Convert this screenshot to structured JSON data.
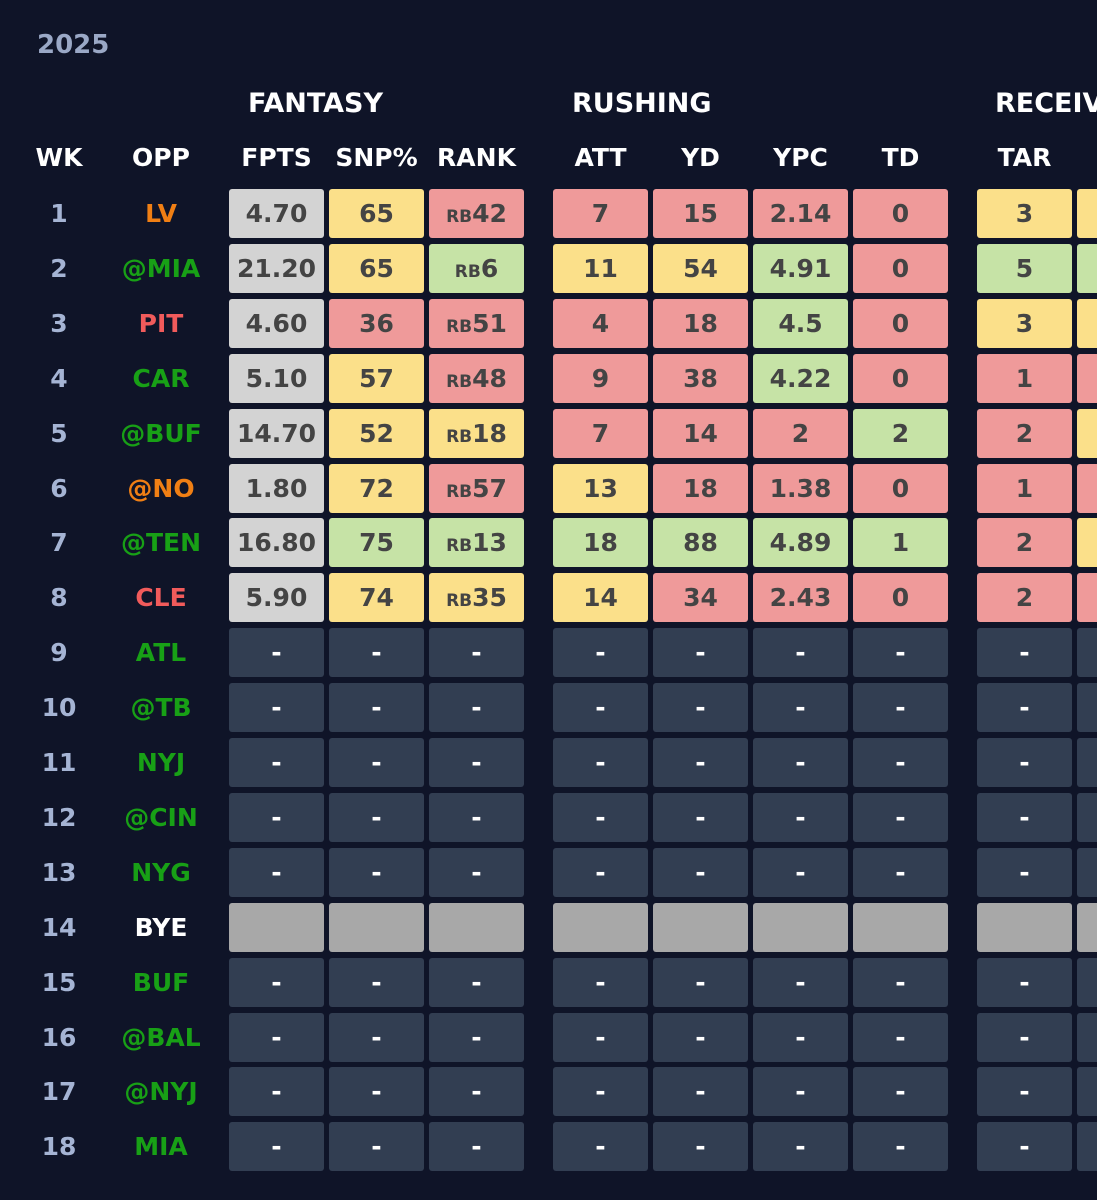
{
  "season": "2025",
  "groups": [
    "FANTASY",
    "RUSHING",
    "RECEIV"
  ],
  "columns": [
    "WK",
    "OPP",
    "FPTS",
    "SNP%",
    "RANK",
    "ATT",
    "YD",
    "YPC",
    "TD",
    "TAR"
  ],
  "colors": {
    "gray": "#d3d3d3",
    "yellow": "#fbe08a",
    "red": "#ef9a9a",
    "green": "#c6e3a6",
    "empty": "#323e52",
    "bye": "#a8a8a8",
    "opp_green": "#18a016",
    "opp_orange": "#f07f14",
    "opp_red": "#f15b5b",
    "opp_white": "#ffffff"
  },
  "empty_value": "-",
  "weeks": [
    {
      "wk": "1",
      "opp": "LV",
      "opp_color": "orange",
      "fpts": "4.70",
      "snp": "65",
      "snp_c": "yellow",
      "rank_pos": "RB",
      "rank_num": "42",
      "rank_c": "red",
      "att": "7",
      "att_c": "red",
      "yd": "15",
      "yd_c": "red",
      "ypc": "2.14",
      "ypc_c": "red",
      "td": "0",
      "td_c": "red",
      "tar": "3",
      "tar_c": "yellow",
      "next_c": "yellow"
    },
    {
      "wk": "2",
      "opp": "@MIA",
      "opp_color": "green",
      "fpts": "21.20",
      "snp": "65",
      "snp_c": "yellow",
      "rank_pos": "RB",
      "rank_num": "6",
      "rank_c": "green",
      "att": "11",
      "att_c": "yellow",
      "yd": "54",
      "yd_c": "yellow",
      "ypc": "4.91",
      "ypc_c": "green",
      "td": "0",
      "td_c": "red",
      "tar": "5",
      "tar_c": "green",
      "next_c": "green"
    },
    {
      "wk": "3",
      "opp": "PIT",
      "opp_color": "red",
      "fpts": "4.60",
      "snp": "36",
      "snp_c": "red",
      "rank_pos": "RB",
      "rank_num": "51",
      "rank_c": "red",
      "att": "4",
      "att_c": "red",
      "yd": "18",
      "yd_c": "red",
      "ypc": "4.5",
      "ypc_c": "green",
      "td": "0",
      "td_c": "red",
      "tar": "3",
      "tar_c": "yellow",
      "next_c": "yellow"
    },
    {
      "wk": "4",
      "opp": "CAR",
      "opp_color": "green",
      "fpts": "5.10",
      "snp": "57",
      "snp_c": "yellow",
      "rank_pos": "RB",
      "rank_num": "48",
      "rank_c": "red",
      "att": "9",
      "att_c": "red",
      "yd": "38",
      "yd_c": "red",
      "ypc": "4.22",
      "ypc_c": "green",
      "td": "0",
      "td_c": "red",
      "tar": "1",
      "tar_c": "red",
      "next_c": "red"
    },
    {
      "wk": "5",
      "opp": "@BUF",
      "opp_color": "green",
      "fpts": "14.70",
      "snp": "52",
      "snp_c": "yellow",
      "rank_pos": "RB",
      "rank_num": "18",
      "rank_c": "yellow",
      "att": "7",
      "att_c": "red",
      "yd": "14",
      "yd_c": "red",
      "ypc": "2",
      "ypc_c": "red",
      "td": "2",
      "td_c": "green",
      "tar": "2",
      "tar_c": "red",
      "next_c": "yellow"
    },
    {
      "wk": "6",
      "opp": "@NO",
      "opp_color": "orange",
      "fpts": "1.80",
      "snp": "72",
      "snp_c": "yellow",
      "rank_pos": "RB",
      "rank_num": "57",
      "rank_c": "red",
      "att": "13",
      "att_c": "yellow",
      "yd": "18",
      "yd_c": "red",
      "ypc": "1.38",
      "ypc_c": "red",
      "td": "0",
      "td_c": "red",
      "tar": "1",
      "tar_c": "red",
      "next_c": "red"
    },
    {
      "wk": "7",
      "opp": "@TEN",
      "opp_color": "green",
      "fpts": "16.80",
      "snp": "75",
      "snp_c": "green",
      "rank_pos": "RB",
      "rank_num": "13",
      "rank_c": "green",
      "att": "18",
      "att_c": "green",
      "yd": "88",
      "yd_c": "green",
      "ypc": "4.89",
      "ypc_c": "green",
      "td": "1",
      "td_c": "green",
      "tar": "2",
      "tar_c": "red",
      "next_c": "yellow"
    },
    {
      "wk": "8",
      "opp": "CLE",
      "opp_color": "red",
      "fpts": "5.90",
      "snp": "74",
      "snp_c": "yellow",
      "rank_pos": "RB",
      "rank_num": "35",
      "rank_c": "yellow",
      "att": "14",
      "att_c": "yellow",
      "yd": "34",
      "yd_c": "red",
      "ypc": "2.43",
      "ypc_c": "red",
      "td": "0",
      "td_c": "red",
      "tar": "2",
      "tar_c": "red",
      "next_c": "red"
    },
    {
      "wk": "9",
      "opp": "ATL",
      "opp_color": "green",
      "future": true
    },
    {
      "wk": "10",
      "opp": "@TB",
      "opp_color": "green",
      "future": true
    },
    {
      "wk": "11",
      "opp": "NYJ",
      "opp_color": "green",
      "future": true
    },
    {
      "wk": "12",
      "opp": "@CIN",
      "opp_color": "green",
      "future": true
    },
    {
      "wk": "13",
      "opp": "NYG",
      "opp_color": "green",
      "future": true
    },
    {
      "wk": "14",
      "opp": "BYE",
      "opp_color": "white",
      "bye": true
    },
    {
      "wk": "15",
      "opp": "BUF",
      "opp_color": "green",
      "future": true
    },
    {
      "wk": "16",
      "opp": "@BAL",
      "opp_color": "green",
      "future": true
    },
    {
      "wk": "17",
      "opp": "@NYJ",
      "opp_color": "green",
      "future": true
    },
    {
      "wk": "18",
      "opp": "MIA",
      "opp_color": "green",
      "future": true
    }
  ]
}
